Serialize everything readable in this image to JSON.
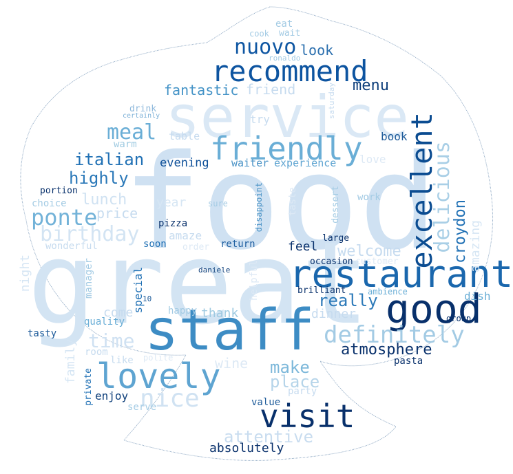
{
  "palette": {
    "pale": "#d6e6f4",
    "light": "#c6dbef",
    "mid": "#9ecae1",
    "blue": "#6baed6",
    "strong": "#4292c6",
    "deep": "#2171b5",
    "dark": "#08519c",
    "navy": "#08306b",
    "outline": "#8fa9c4"
  },
  "words": {
    "food": "food",
    "great": "great",
    "service": "service",
    "staff": "staff",
    "restaurant": "restaurant",
    "good": "good",
    "recommend": "recommend",
    "friendly": "friendly",
    "lovely": "lovely",
    "visit": "visit",
    "excellent": "excellent",
    "delicious": "delicious",
    "definitely": "definitely",
    "nice": "nice",
    "nuovo": "nuovo",
    "ponte": "ponte",
    "birthday": "birthday",
    "meal": "meal",
    "italian": "italian",
    "highly": "highly",
    "lunch": "lunch",
    "price": "price",
    "time": "time",
    "atmosphere": "atmosphere",
    "really": "really",
    "make": "make",
    "place": "place",
    "attentive": "attentive",
    "absolutely": "absolutely",
    "welcome": "welcome",
    "croydon": "croydon",
    "amazing": "amazing",
    "menu": "menu",
    "look": "look",
    "friend": "friend",
    "fantastic": "fantastic",
    "evening": "evening",
    "waiter": "waiter",
    "experience": "experience",
    "love": "love",
    "book": "book",
    "table": "table",
    "try": "try",
    "drink": "drink",
    "certainly": "certainly",
    "warm": "warm",
    "portion": "portion",
    "choice": "choice",
    "wonderful": "wonderful",
    "night": "night",
    "year": "year",
    "amaze": "amaze",
    "pizza": "pizza",
    "soon": "soon",
    "order": "order",
    "return": "return",
    "feel": "feel",
    "large": "large",
    "occasion": "occasion",
    "customer": "customer",
    "brilliant": "brilliant",
    "ambience": "ambience",
    "dish": "dish",
    "group": "group",
    "dinner": "dinner",
    "thank": "thank",
    "come": "come",
    "quality": "quality",
    "tasty": "tasty",
    "happy": "happy",
    "special": "special",
    "manager": "manager",
    "family": "family",
    "room": "room",
    "like": "like",
    "polite": "polite",
    "wine": "wine",
    "private": "private",
    "enjoy": "enjoy",
    "serve": "serve",
    "value": "value",
    "party": "party",
    "pasta": "pasta",
    "work": "work",
    "dessert": "dessert",
    "taste": "taste",
    "sure": "sure",
    "disappoint": "disappoint",
    "daniele": "daniele",
    "helpful": "helpful",
    "cook": "cook",
    "wait": "wait",
    "eat": "eat",
    "ronaldo": "ronaldo",
    "saturday": "saturday",
    "10": "10",
    "definitely_small": "definitely"
  }
}
